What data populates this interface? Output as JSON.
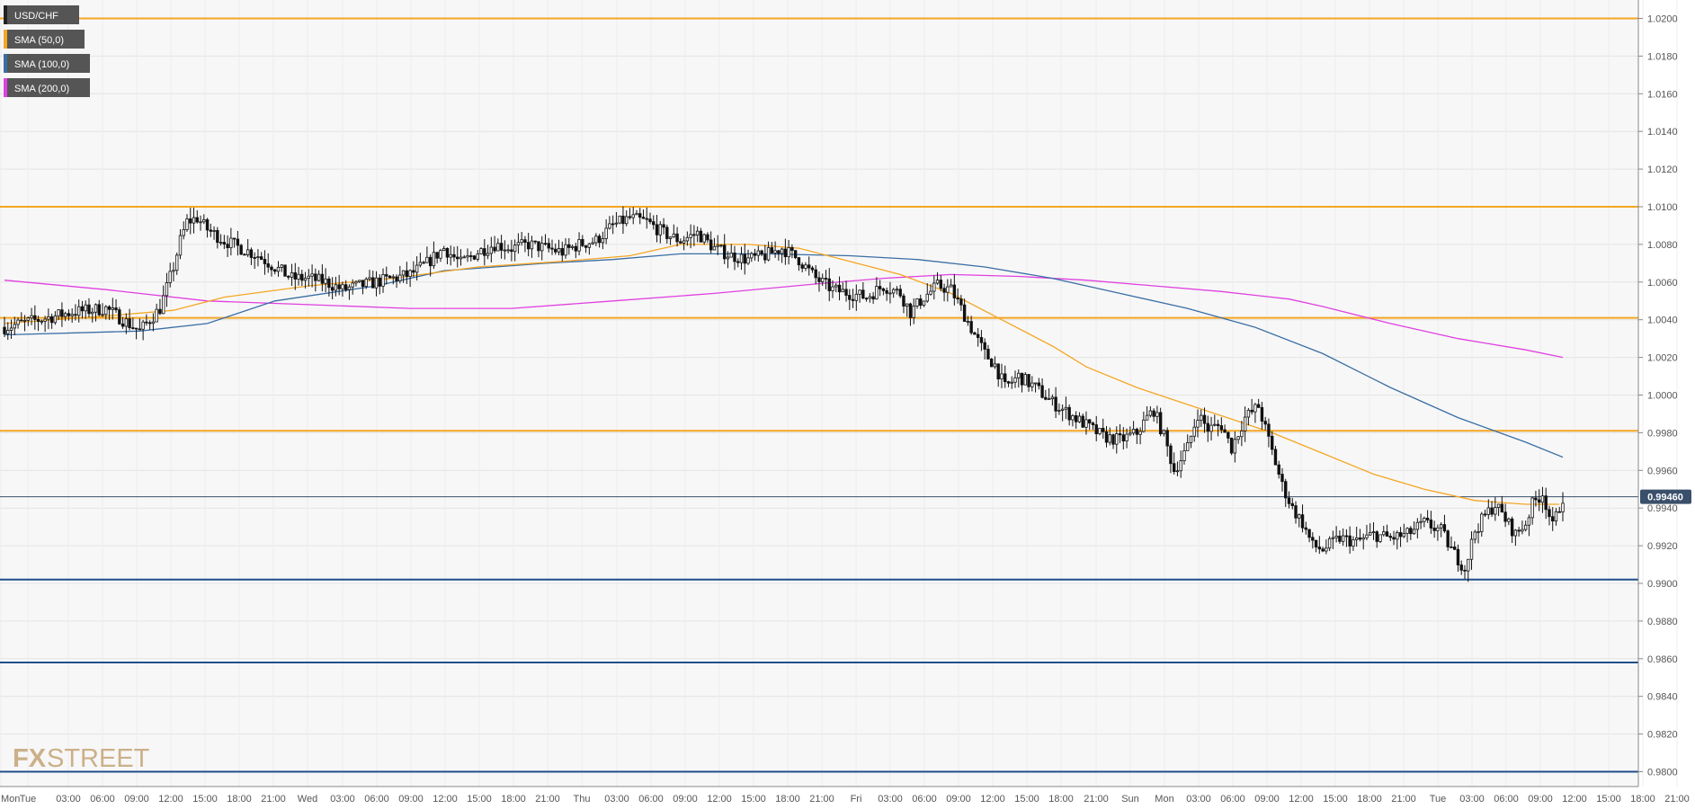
{
  "legend": [
    {
      "label": "USD/CHF",
      "color": "#222222"
    },
    {
      "label": "SMA (50,0)",
      "color": "#f5a623"
    },
    {
      "label": "SMA (100,0)",
      "color": "#3a6ea5"
    },
    {
      "label": "SMA (200,0)",
      "color": "#e040e0"
    }
  ],
  "watermark": {
    "fx": "FX",
    "street": "STREET"
  },
  "chart_data": {
    "type": "candlestick",
    "symbol": "USD/CHF",
    "ylim": [
      0.9795,
      1.0205
    ],
    "y_ticks": [
      "1.0200",
      "1.0180",
      "1.0160",
      "1.0140",
      "1.0120",
      "1.0100",
      "1.0080",
      "1.0060",
      "1.0040",
      "1.0020",
      "1.0000",
      "0.9980",
      "0.9960",
      "0.9940",
      "0.9920",
      "0.9900",
      "0.9880",
      "0.9860",
      "0.9840",
      "0.9820",
      "0.9800"
    ],
    "x_ticks": [
      "Mon",
      "Tue",
      "03:00",
      "06:00",
      "09:00",
      "12:00",
      "15:00",
      "18:00",
      "21:00",
      "Wed",
      "03:00",
      "06:00",
      "09:00",
      "12:00",
      "15:00",
      "18:00",
      "21:00",
      "Thu",
      "03:00",
      "06:00",
      "09:00",
      "12:00",
      "15:00",
      "18:00",
      "21:00",
      "Fri",
      "03:00",
      "06:00",
      "09:00",
      "12:00",
      "15:00",
      "18:00",
      "21:00",
      "Sun",
      "Mon",
      "03:00",
      "06:00",
      "09:00",
      "12:00",
      "15:00",
      "18:00",
      "21:00",
      "Tue",
      "03:00",
      "06:00",
      "09:00",
      "12:00",
      "15:00",
      "18:00",
      "21:00"
    ],
    "current_price": {
      "value": 0.9946,
      "label": "0.99460",
      "color": "#3a4f6a"
    },
    "horizontal_levels": [
      {
        "value": 1.02,
        "color": "#f5a623"
      },
      {
        "value": 1.01,
        "color": "#f5a623"
      },
      {
        "value": 1.0041,
        "color": "#f5a623"
      },
      {
        "value": 0.9981,
        "color": "#f5a623"
      },
      {
        "value": 0.9902,
        "color": "#1f4e8c"
      },
      {
        "value": 0.9858,
        "color": "#1f4e8c"
      },
      {
        "value": 0.98,
        "color": "#1f4e8c"
      }
    ],
    "price_path": [
      [
        0,
        1.0036
      ],
      [
        10,
        1.004
      ],
      [
        20,
        1.0044
      ],
      [
        30,
        1.0046
      ],
      [
        35,
        1.004
      ],
      [
        40,
        1.0034
      ],
      [
        46,
        1.0046
      ],
      [
        50,
        1.0068
      ],
      [
        52,
        1.0082
      ],
      [
        54,
        1.0092
      ],
      [
        57,
        1.0094
      ],
      [
        60,
        1.0088
      ],
      [
        65,
        1.0082
      ],
      [
        70,
        1.0078
      ],
      [
        75,
        1.0074
      ],
      [
        80,
        1.0068
      ],
      [
        85,
        1.0062
      ],
      [
        90,
        1.0062
      ],
      [
        95,
        1.006
      ],
      [
        100,
        1.0056
      ],
      [
        105,
        1.0058
      ],
      [
        110,
        1.006
      ],
      [
        115,
        1.0062
      ],
      [
        120,
        1.0064
      ],
      [
        125,
        1.007
      ],
      [
        130,
        1.0078
      ],
      [
        135,
        1.007
      ],
      [
        140,
        1.0076
      ],
      [
        145,
        1.008
      ],
      [
        150,
        1.0078
      ],
      [
        155,
        1.008
      ],
      [
        160,
        1.0078
      ],
      [
        165,
        1.0076
      ],
      [
        170,
        1.008
      ],
      [
        175,
        1.0082
      ],
      [
        180,
        1.009
      ],
      [
        185,
        1.0094
      ],
      [
        190,
        1.0092
      ],
      [
        195,
        1.0086
      ],
      [
        200,
        1.0082
      ],
      [
        205,
        1.0086
      ],
      [
        210,
        1.0078
      ],
      [
        215,
        1.0074
      ],
      [
        220,
        1.0072
      ],
      [
        225,
        1.0074
      ],
      [
        230,
        1.0078
      ],
      [
        235,
        1.0072
      ],
      [
        240,
        1.0062
      ],
      [
        245,
        1.0056
      ],
      [
        250,
        1.0054
      ],
      [
        255,
        1.0052
      ],
      [
        260,
        1.0058
      ],
      [
        265,
        1.0054
      ],
      [
        268,
        1.0044
      ],
      [
        272,
        1.0052
      ],
      [
        276,
        1.0058
      ],
      [
        280,
        1.0056
      ],
      [
        283,
        1.0046
      ],
      [
        287,
        1.0032
      ],
      [
        290,
        1.0022
      ],
      [
        293,
        1.0016
      ],
      [
        296,
        1.0004
      ],
      [
        300,
        1.001
      ],
      [
        305,
        1.0004
      ],
      [
        310,
        0.9996
      ],
      [
        315,
        0.999
      ],
      [
        320,
        0.9984
      ],
      [
        325,
        0.9978
      ],
      [
        330,
        0.9976
      ],
      [
        335,
        0.998
      ],
      [
        338,
        0.9988
      ],
      [
        340,
        0.9992
      ],
      [
        343,
        0.9978
      ],
      [
        346,
        0.996
      ],
      [
        350,
        0.9972
      ],
      [
        353,
        0.999
      ],
      [
        356,
        0.9982
      ],
      [
        360,
        0.9984
      ],
      [
        363,
        0.9972
      ],
      [
        367,
        0.9988
      ],
      [
        371,
        0.9994
      ],
      [
        375,
        0.997
      ],
      [
        378,
        0.9952
      ],
      [
        381,
        0.994
      ],
      [
        384,
        0.9932
      ],
      [
        387,
        0.992
      ],
      [
        390,
        0.9918
      ],
      [
        395,
        0.9924
      ],
      [
        400,
        0.9922
      ],
      [
        405,
        0.9926
      ],
      [
        410,
        0.9924
      ],
      [
        415,
        0.9926
      ],
      [
        420,
        0.9932
      ],
      [
        425,
        0.9928
      ],
      [
        428,
        0.9918
      ],
      [
        432,
        0.9908
      ],
      [
        435,
        0.9928
      ],
      [
        438,
        0.9936
      ],
      [
        441,
        0.9942
      ],
      [
        444,
        0.9934
      ],
      [
        447,
        0.9926
      ],
      [
        450,
        0.9932
      ],
      [
        452,
        0.9942
      ],
      [
        455,
        0.9948
      ],
      [
        458,
        0.993
      ],
      [
        461,
        0.9946
      ]
    ],
    "sma50": [
      [
        0,
        1.0038
      ],
      [
        30,
        1.0042
      ],
      [
        50,
        1.0045
      ],
      [
        65,
        1.0052
      ],
      [
        90,
        1.0058
      ],
      [
        115,
        1.0062
      ],
      [
        140,
        1.0068
      ],
      [
        165,
        1.0071
      ],
      [
        185,
        1.0074
      ],
      [
        200,
        1.008
      ],
      [
        220,
        1.008
      ],
      [
        235,
        1.0078
      ],
      [
        250,
        1.0071
      ],
      [
        265,
        1.0064
      ],
      [
        280,
        1.0054
      ],
      [
        295,
        1.004
      ],
      [
        310,
        1.0026
      ],
      [
        320,
        1.0015
      ],
      [
        335,
        1.0004
      ],
      [
        350,
        0.9995
      ],
      [
        365,
        0.9986
      ],
      [
        375,
        0.998
      ],
      [
        390,
        0.9969
      ],
      [
        405,
        0.9958
      ],
      [
        420,
        0.995
      ],
      [
        435,
        0.9944
      ],
      [
        450,
        0.9942
      ],
      [
        460,
        0.9942
      ]
    ],
    "sma100": [
      [
        0,
        1.0032
      ],
      [
        40,
        1.0034
      ],
      [
        60,
        1.0038
      ],
      [
        80,
        1.005
      ],
      [
        110,
        1.0058
      ],
      [
        130,
        1.0066
      ],
      [
        160,
        1.007
      ],
      [
        180,
        1.0072
      ],
      [
        200,
        1.0075
      ],
      [
        225,
        1.0075
      ],
      [
        250,
        1.0074
      ],
      [
        270,
        1.0072
      ],
      [
        290,
        1.0068
      ],
      [
        310,
        1.0062
      ],
      [
        330,
        1.0054
      ],
      [
        350,
        1.0046
      ],
      [
        370,
        1.0036
      ],
      [
        390,
        1.0022
      ],
      [
        410,
        1.0004
      ],
      [
        430,
        0.9988
      ],
      [
        450,
        0.9975
      ],
      [
        461,
        0.9967
      ]
    ],
    "sma200": [
      [
        0,
        1.0061
      ],
      [
        30,
        1.0056
      ],
      [
        60,
        1.005
      ],
      [
        90,
        1.0048
      ],
      [
        120,
        1.0046
      ],
      [
        150,
        1.0046
      ],
      [
        180,
        1.005
      ],
      [
        210,
        1.0054
      ],
      [
        240,
        1.0059
      ],
      [
        260,
        1.0062
      ],
      [
        280,
        1.0064
      ],
      [
        300,
        1.0063
      ],
      [
        320,
        1.0061
      ],
      [
        340,
        1.0058
      ],
      [
        360,
        1.0055
      ],
      [
        380,
        1.0051
      ],
      [
        390,
        1.0047
      ],
      [
        410,
        1.0038
      ],
      [
        430,
        1.003
      ],
      [
        450,
        1.0024
      ],
      [
        461,
        1.002
      ]
    ]
  }
}
